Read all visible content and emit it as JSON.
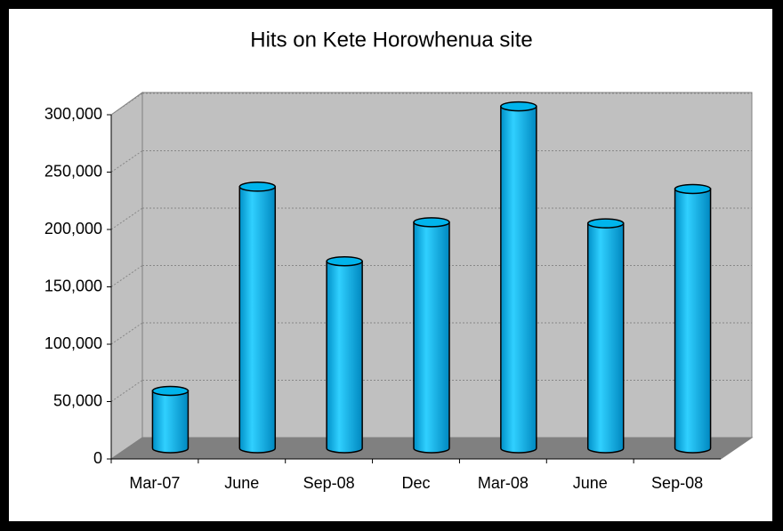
{
  "chart_data": {
    "type": "bar",
    "title": "Hits on Kete Horowhenua site",
    "categories": [
      "Mar-07",
      "June",
      "Sep-08",
      "Dec",
      "Mar-08",
      "June",
      "Sep-08"
    ],
    "values": [
      50000,
      228000,
      163000,
      197000,
      298000,
      196000,
      226000
    ],
    "color": "#00b4ec",
    "ylim": [
      0,
      300000
    ],
    "yticks": [
      0,
      {
        "value": 50000,
        "label": "50,000"
      },
      {
        "value": 100000,
        "label": "100,000"
      },
      {
        "value": 150000,
        "label": "150,000"
      },
      {
        "value": 200000,
        "label": "200,000"
      },
      {
        "value": 250000,
        "label": "250,000"
      },
      {
        "value": 300000,
        "label": "300,000"
      }
    ],
    "grid": true
  }
}
